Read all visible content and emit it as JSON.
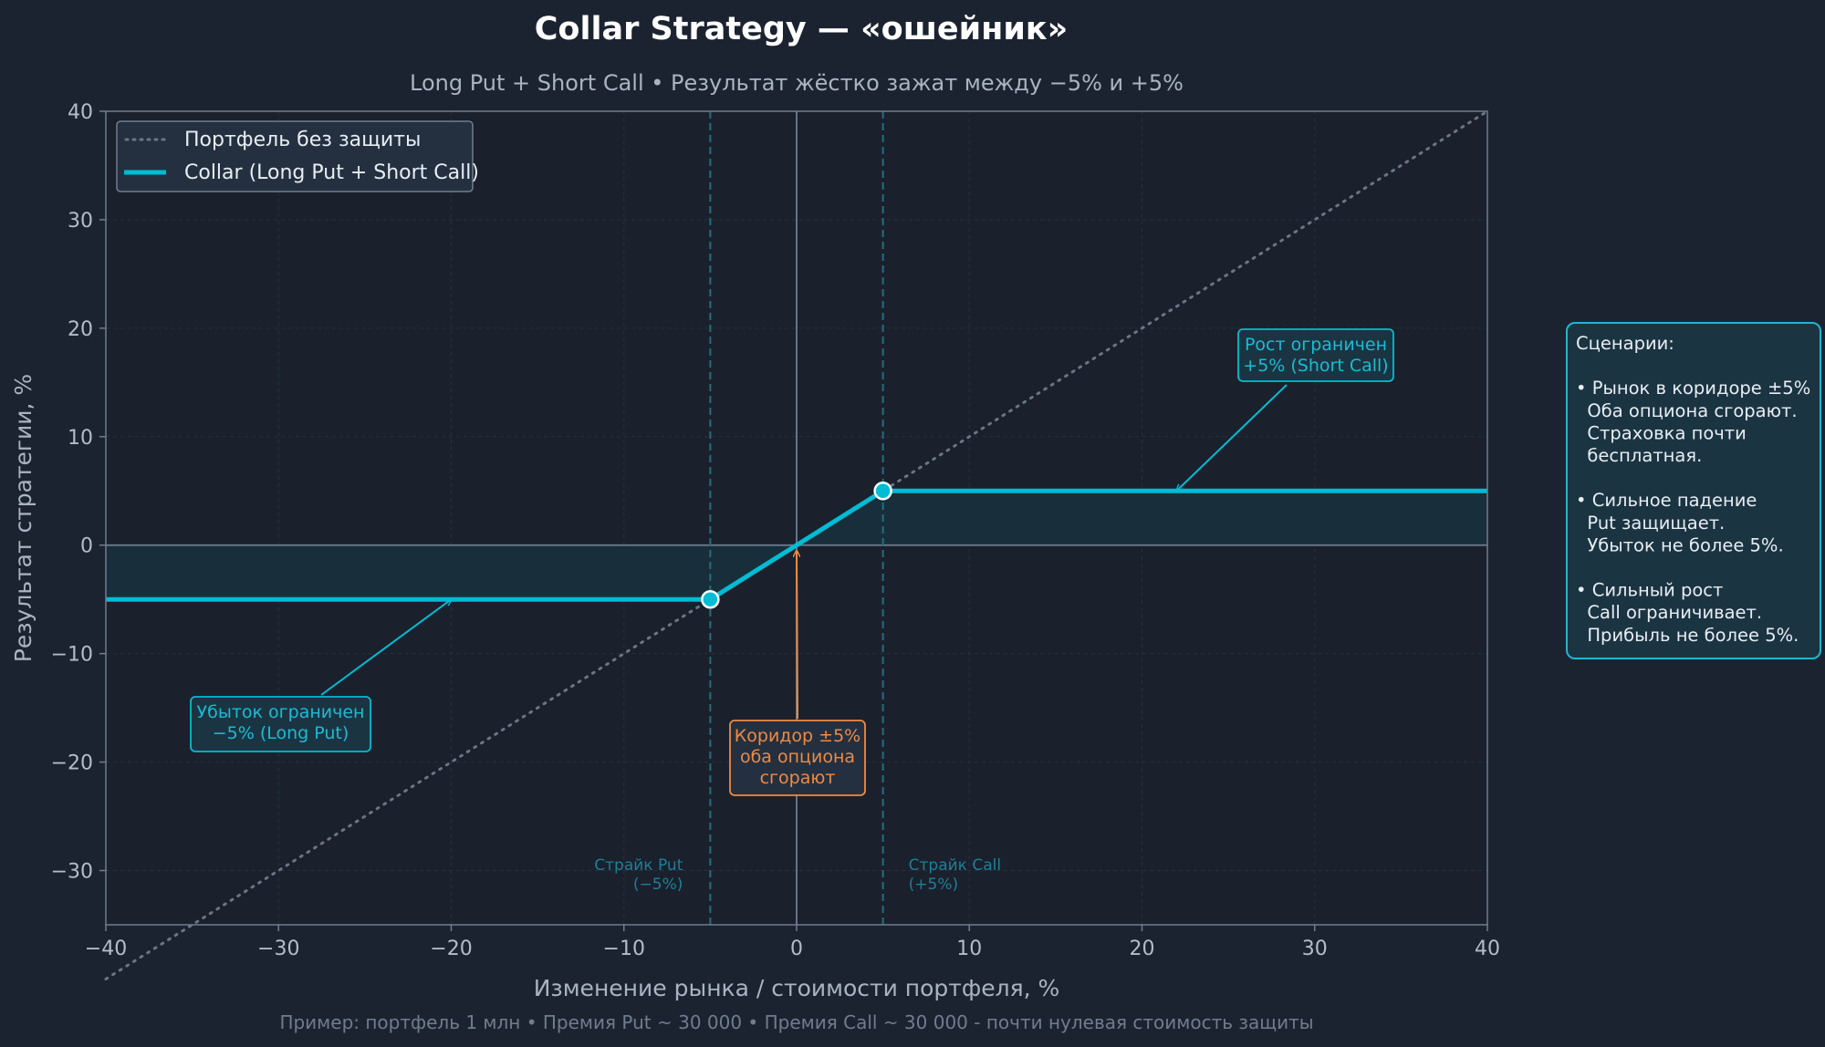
{
  "colors": {
    "background": "#1c2330",
    "plot_bg": "#1a212c",
    "collar": "#00bcd4",
    "fill": "#18303c",
    "unprotected": "#6b7684",
    "strike": "#1f6f84",
    "orange": "#ef8a43",
    "spine": "#6f7d8e"
  },
  "chart_data": {
    "type": "line",
    "title": "Collar Strategy — «ошейник»",
    "subtitle": "Long Put + Short Call  •  Результат жёстко зажат между −5% и +5%",
    "xlabel": "Изменение рынка / стоимости портфеля, %",
    "ylabel": "Результат стратегии, %",
    "footnote": "Пример: портфель 1 млн  •  Премия Put ~ 30 000  •  Премия Call ~ 30 000  -  почти нулевая стоимость защиты",
    "xlim": [
      -40,
      40
    ],
    "ylim": [
      -35,
      40
    ],
    "x_ticks": [
      -40,
      -30,
      -20,
      -10,
      0,
      10,
      20,
      30,
      40
    ],
    "y_ticks": [
      -30,
      -20,
      -10,
      0,
      10,
      20,
      30,
      40
    ],
    "x_tick_labels": [
      "−40",
      "−30",
      "−20",
      "−10",
      "0",
      "10",
      "20",
      "30",
      "40"
    ],
    "y_tick_labels": [
      "−30",
      "−20",
      "−10",
      "0",
      "10",
      "20",
      "30",
      "40"
    ],
    "grid": true,
    "legend_position": "top-left",
    "series": [
      {
        "name": "Портфель без защиты",
        "style": "dotted",
        "x": [
          -40,
          40
        ],
        "y": [
          -40,
          40
        ]
      },
      {
        "name": "Collar (Long Put + Short Call)",
        "style": "solid",
        "x": [
          -40,
          -5,
          5,
          40
        ],
        "y": [
          -5,
          -5,
          5,
          5
        ]
      }
    ],
    "key_points": [
      {
        "x": -5,
        "y": -5
      },
      {
        "x": 5,
        "y": 5
      }
    ],
    "strikes": [
      {
        "x": -5,
        "label_lines": [
          "Страйк Put",
          "(−5%)"
        ]
      },
      {
        "x": 5,
        "label_lines": [
          "Страйк Call",
          "(+5%)"
        ]
      }
    ],
    "annotations": [
      {
        "id": "loss",
        "lines": [
          "Убыток ограничен",
          "−5% (Long Put)"
        ],
        "arrow_to": {
          "x": -20,
          "y": -5
        }
      },
      {
        "id": "gain",
        "lines": [
          "Рост ограничен",
          "+5% (Short Call)"
        ],
        "arrow_to": {
          "x": 22,
          "y": 5
        }
      },
      {
        "id": "corridor",
        "lines": [
          "Коридор ±5%",
          "оба опциона",
          "сгорают"
        ],
        "arrow_to": {
          "x": 0,
          "y": 0
        }
      }
    ]
  },
  "scenarios": {
    "lines": [
      "Сценарии:",
      "",
      "• Рынок в коридоре ±5%",
      "  Оба опциона сгорают.",
      "  Страховка почти",
      "  бесплатная.",
      "",
      "• Сильное падение",
      "  Put защищает.",
      "  Убыток не более 5%.",
      "",
      "• Сильный рост",
      "  Call ограничивает.",
      "  Прибыль не более 5%."
    ]
  }
}
